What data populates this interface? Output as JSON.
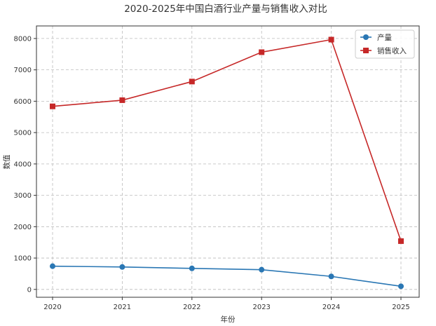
{
  "chart_data": {
    "type": "line",
    "title": "2020-2025年中国白酒行业产量与销售收入对比",
    "xlabel": "年份",
    "ylabel": "数值",
    "categories": [
      "2020",
      "2021",
      "2022",
      "2023",
      "2024",
      "2025"
    ],
    "ylim": [
      -250,
      8400
    ],
    "yticks": [
      0,
      1000,
      2000,
      3000,
      4000,
      5000,
      6000,
      7000,
      8000
    ],
    "grid": true,
    "legend_position": "top-right",
    "series": [
      {
        "name": "产量",
        "values": [
          741,
          716,
          671,
          629,
          415,
          100
        ],
        "color": "#2a77b4",
        "marker": "circle"
      },
      {
        "name": "销售收入",
        "values": [
          5836,
          6033,
          6627,
          7563,
          7964,
          1540
        ],
        "color": "#c62828",
        "marker": "square"
      }
    ]
  }
}
